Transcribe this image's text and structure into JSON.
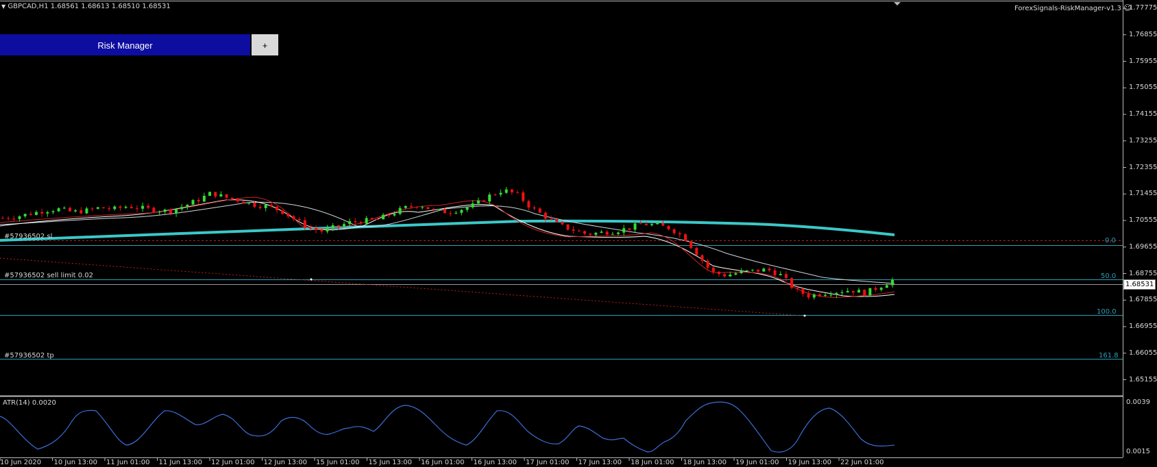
{
  "symbol_header": {
    "text": "GBPCAD,H1  1.68561 1.68613 1.68510 1.68531",
    "arrow_icon": "triangle-down-icon"
  },
  "expert": {
    "name": "ForexSignals-RiskManager-v1.3",
    "icon": "smiley-icon"
  },
  "risk_manager": {
    "button_label": "Risk Manager",
    "plus_label": "+",
    "button_color": "#0d0da0"
  },
  "price_axis": {
    "ticks": [
      "1.77775",
      "1.76855",
      "1.75955",
      "1.75055",
      "1.74155",
      "1.73255",
      "1.72355",
      "1.71455",
      "1.70555",
      "1.69655",
      "1.68755",
      "1.67855",
      "1.66955",
      "1.66055",
      "1.65155"
    ],
    "current_price": "1.68531"
  },
  "order_lines": [
    {
      "label": "#57936502 sl",
      "fib": "0.0"
    },
    {
      "label": "#57936502 sell limit 0.02",
      "fib": "50.0"
    },
    {
      "label": "",
      "fib": "100.0"
    },
    {
      "label": "#57936502 tp",
      "fib": "161.8"
    }
  ],
  "indicator": {
    "label": "ATR(14) 0.0020",
    "scale_top": "0.0039",
    "scale_bottom": "0.0015"
  },
  "time_axis": [
    "10 Jun 2020",
    "10 Jun 13:00",
    "11 Jun 01:00",
    "11 Jun 13:00",
    "12 Jun 01:00",
    "12 Jun 13:00",
    "15 Jun 01:00",
    "15 Jun 13:00",
    "16 Jun 01:00",
    "16 Jun 13:00",
    "17 Jun 01:00",
    "17 Jun 13:00",
    "18 Jun 01:00",
    "18 Jun 13:00",
    "19 Jun 01:00",
    "19 Jun 13:00",
    "22 Jun 01:00"
  ],
  "colors": {
    "background": "#000000",
    "bull_candle": "#33dd33",
    "bear_candle": "#ee1111",
    "ma_long": "#3cc8c8",
    "fib_line": "#2aa0b8",
    "atr_line": "#3b6fd8",
    "stop_line": "#c02020"
  },
  "chart_data": {
    "type": "candlestick",
    "title": "GBPCAD,H1",
    "ohlc_last": {
      "open": 1.68561,
      "high": 1.68613,
      "low": 1.6851,
      "close": 1.68531
    },
    "closes_approx": [
      1.7065,
      1.707,
      1.708,
      1.709,
      1.7095,
      1.7085,
      1.709,
      1.71,
      1.7095,
      1.7105,
      1.7098,
      1.7092,
      1.7088,
      1.7105,
      1.7125,
      1.715,
      1.7135,
      1.7125,
      1.711,
      1.7105,
      1.709,
      1.706,
      1.703,
      1.702,
      1.7035,
      1.705,
      1.7055,
      1.706,
      1.708,
      1.71,
      1.711,
      1.709,
      1.7085,
      1.7095,
      1.711,
      1.714,
      1.716,
      1.7145,
      1.71,
      1.707,
      1.704,
      1.7025,
      1.701,
      1.7015,
      1.702,
      1.703,
      1.7045,
      1.704,
      1.703,
      1.7,
      1.694,
      1.688,
      1.687,
      1.688,
      1.6885,
      1.689,
      1.687,
      1.682,
      1.68,
      1.681,
      1.6815,
      1.682,
      1.681,
      1.683,
      1.6853
    ],
    "ylim": [
      1.6475,
      1.78
    ]
  }
}
